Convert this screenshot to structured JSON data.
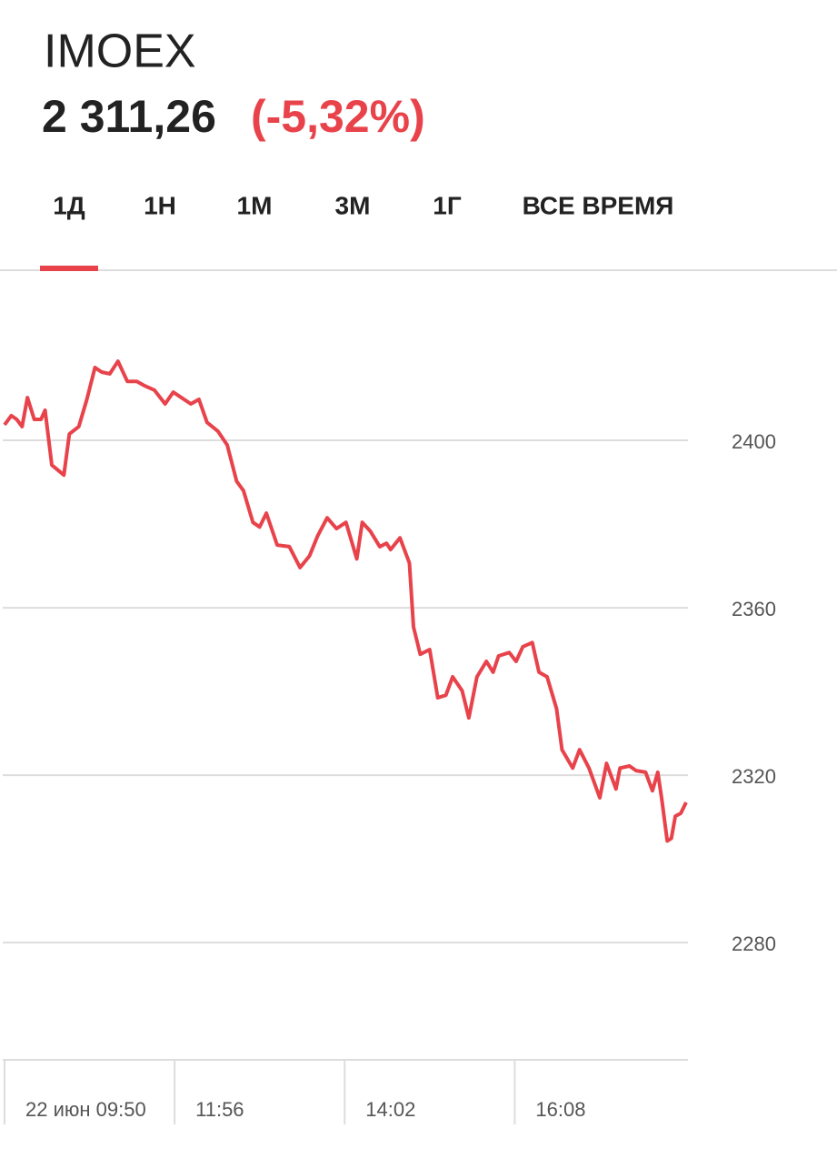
{
  "header": {
    "title": "IMOEX",
    "price": "2 311,26",
    "change": "(-5,32%)"
  },
  "tabs": [
    "1Д",
    "1Н",
    "1М",
    "3М",
    "1Г",
    "ВСЕ ВРЕМЯ"
  ],
  "chart_data": {
    "type": "line",
    "color": "#e8434b",
    "grid": true,
    "xlim": [
      "09:50",
      "18:15"
    ],
    "xticks": [
      {
        "value": "09:50",
        "label": "22 июн 09:50"
      },
      "11:56",
      "14:02",
      "16:08"
    ],
    "ylim": [
      2252,
      2440
    ],
    "yticks": [
      2280,
      2320,
      2360,
      2400
    ],
    "x": [
      "09:50",
      "09:55",
      "09:59",
      "10:03",
      "10:07",
      "10:12",
      "10:17",
      "10:20",
      "10:25",
      "10:34",
      "10:38",
      "10:45",
      "10:51",
      "10:57",
      "11:02",
      "11:08",
      "11:14",
      "11:21",
      "11:28",
      "11:34",
      "11:41",
      "11:49",
      "11:55",
      "12:01",
      "12:08",
      "12:14",
      "12:20",
      "12:28",
      "12:35",
      "12:42",
      "12:47",
      "12:54",
      "12:59",
      "13:04",
      "13:12",
      "13:21",
      "13:29",
      "13:36",
      "13:42",
      "13:49",
      "13:56",
      "14:03",
      "14:11",
      "14:15",
      "14:21",
      "14:28",
      "14:33",
      "14:36",
      "14:43",
      "14:50",
      "14:53",
      "14:58",
      "15:05",
      "15:11",
      "15:17",
      "15:22",
      "15:29",
      "15:34",
      "15:40",
      "15:47",
      "15:52",
      "15:56",
      "16:04",
      "16:09",
      "16:14",
      "16:21",
      "16:26",
      "16:32",
      "16:39",
      "16:43",
      "16:51",
      "16:56",
      "17:03",
      "17:11",
      "17:16",
      "17:23",
      "17:26",
      "17:33",
      "17:38",
      "17:45",
      "17:50",
      "17:54",
      "17:57",
      "18:01",
      "18:04",
      "18:07",
      "18:11",
      "18:15"
    ],
    "values": [
      2403.7,
      2405.9,
      2405.0,
      2403.3,
      2410.2,
      2405.0,
      2405.0,
      2407.2,
      2394.1,
      2391.7,
      2401.5,
      2403.3,
      2409.8,
      2417.4,
      2416.3,
      2415.9,
      2418.9,
      2414.1,
      2414.1,
      2413.0,
      2412.0,
      2408.7,
      2411.5,
      2410.2,
      2408.7,
      2409.8,
      2404.3,
      2402.2,
      2398.9,
      2390.2,
      2388.0,
      2380.4,
      2379.3,
      2382.6,
      2375.0,
      2374.6,
      2369.6,
      2372.4,
      2377.2,
      2381.5,
      2378.9,
      2380.4,
      2371.7,
      2380.4,
      2378.3,
      2374.6,
      2375.4,
      2373.9,
      2376.7,
      2370.7,
      2355.4,
      2348.9,
      2350.0,
      2338.5,
      2339.1,
      2343.5,
      2340.2,
      2333.7,
      2343.5,
      2347.2,
      2344.6,
      2348.5,
      2349.3,
      2347.2,
      2350.7,
      2351.7,
      2344.6,
      2343.5,
      2335.9,
      2326.1,
      2321.7,
      2326.1,
      2321.7,
      2314.6,
      2322.8,
      2316.7,
      2321.7,
      2322.2,
      2321.1,
      2320.7,
      2316.3,
      2320.7,
      2314.1,
      2304.3,
      2304.9,
      2310.2,
      2310.9,
      2313.5
    ]
  }
}
